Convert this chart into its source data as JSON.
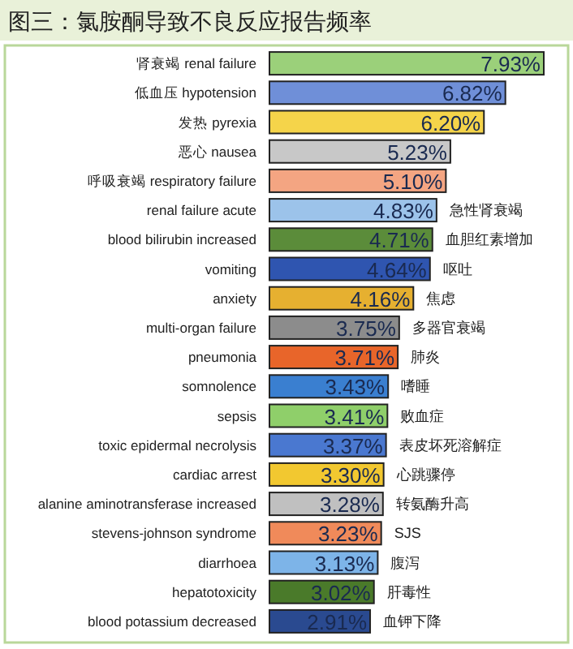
{
  "chart_data": {
    "type": "bar",
    "orientation": "horizontal",
    "title": "图三：氯胺酮导致不良反应报告频率",
    "categories": [
      "肾衰竭 renal failure",
      "低血压 hypotension",
      "发热 pyrexia",
      "恶心 nausea",
      "呼吸衰竭 respiratory failure",
      "renal failure acute",
      "blood bilirubin increased",
      "vomiting",
      "anxiety",
      "multi-organ failure",
      "pneumonia",
      "somnolence",
      "sepsis",
      "toxic epidermal necrolysis",
      "cardiac arrest",
      "alanine aminotransferase increased",
      "stevens-johnson syndrome",
      "diarrhoea",
      "hepatotoxicity",
      "blood potassium decreased"
    ],
    "values": [
      7.93,
      6.82,
      6.2,
      5.23,
      5.1,
      4.83,
      4.71,
      4.64,
      4.16,
      3.75,
      3.71,
      3.43,
      3.41,
      3.37,
      3.3,
      3.28,
      3.23,
      3.13,
      3.02,
      2.91
    ],
    "value_labels": [
      "7.93%",
      "6.82%",
      "6.20%",
      "5.23%",
      "5.10%",
      "4.83%",
      "4.71%",
      "4.64%",
      "4.16%",
      "3.75%",
      "3.71%",
      "3.43%",
      "3.41%",
      "3.37%",
      "3.30%",
      "3.28%",
      "3.23%",
      "3.13%",
      "3.02%",
      "2.91%"
    ],
    "colors": [
      "#9bd07a",
      "#6f8fd8",
      "#f5d44a",
      "#c8c8c8",
      "#f4a582",
      "#9cc3ea",
      "#5b8c3a",
      "#2f55b0",
      "#e6b030",
      "#8c8c8c",
      "#e8652a",
      "#3a7fd0",
      "#8fcf6a",
      "#4a78d0",
      "#f2c830",
      "#c0c0c0",
      "#f08a5a",
      "#7db4e8",
      "#4a7a2a",
      "#2a4a90"
    ],
    "annotations": [
      {
        "text": "急性肾衰竭",
        "x": 4.83,
        "y": "renal failure acute"
      },
      {
        "text": "血胆红素增加",
        "x": 4.71,
        "y": "blood bilirubin increased"
      },
      {
        "text": "呕吐",
        "x": 4.64,
        "y": "vomiting"
      },
      {
        "text": "焦虑",
        "x": 4.16,
        "y": "anxiety"
      },
      {
        "text": "多器官衰竭",
        "x": 3.75,
        "y": "multi-organ failure"
      },
      {
        "text": "肺炎",
        "x": 3.71,
        "y": "pneumonia"
      },
      {
        "text": "嗜睡",
        "x": 3.43,
        "y": "somnolence"
      },
      {
        "text": "败血症",
        "x": 3.41,
        "y": "sepsis"
      },
      {
        "text": "表皮坏死溶解症",
        "x": 3.37,
        "y": "toxic epidermal necrolysis"
      },
      {
        "text": "心跳骤停",
        "x": 3.3,
        "y": "cardiac arrest"
      },
      {
        "text": "转氨酶升高",
        "x": 3.28,
        "y": "alanine aminotransferase increased"
      },
      {
        "text": "SJS",
        "x": 3.23,
        "y": "stevens-johnson syndrome"
      },
      {
        "text": "腹泻",
        "x": 3.13,
        "y": "diarrhoea"
      },
      {
        "text": "肝毒性",
        "x": 3.02,
        "y": "hepatotoxicity"
      },
      {
        "text": "血钾下降",
        "x": 2.91,
        "y": "blood potassium decreased"
      }
    ]
  }
}
